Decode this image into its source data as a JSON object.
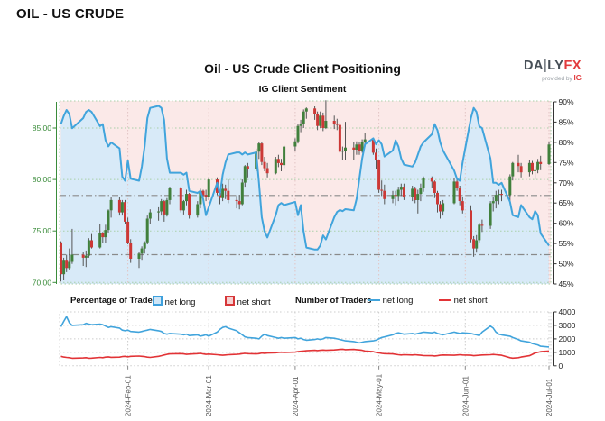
{
  "page": {
    "title": "OIL - US CRUDE"
  },
  "chart": {
    "title": "Oil - US Crude Client Positioning",
    "subtitle": "IG Client Sentiment",
    "logo": {
      "da": "DA",
      "bar": "|",
      "ly": "LY",
      "fx": "FX",
      "tagline": "provided by",
      "ig": "IG"
    },
    "legend": {
      "group1": "Percentage of Traders",
      "group1_long": "net long",
      "group1_short": "net short",
      "group2": "Number of Traders",
      "group2_long": "net long",
      "group2_short": "net short"
    },
    "colors": {
      "net_long_line": "#41a4dc",
      "net_long_fill": "#d8eaf8",
      "net_short_fill": "#fbe9e8",
      "candle_up": "#41803c",
      "candle_down": "#cc3836",
      "wick": "#555555",
      "price_axis_text": "#3a8c3a",
      "pct_axis_text": "#222222",
      "grid_h": "#a9cfa9",
      "grid_v": "#e2c4c4",
      "grid_gray": "#cccccc",
      "ref_line": "#8a8a8a",
      "count_long": "#41a4dc",
      "count_short": "#e23336",
      "date_text": "#555555"
    }
  },
  "chart_data": {
    "type": "candlestick",
    "title": "Oil - US Crude Client Positioning",
    "subtitle": "IG Client Sentiment",
    "start_date": "2024-01-08",
    "end_date": "2024-07-01",
    "span_days": 175,
    "price_axis": {
      "side": "left",
      "min": 70,
      "max": 85,
      "ticks": [
        85,
        80,
        75,
        70
      ],
      "tick_labels": [
        "85.00",
        "80.00",
        "75.00",
        "70.00"
      ]
    },
    "pct_axis": {
      "side": "right",
      "min": 45,
      "max": 90,
      "ticks": [
        90,
        85,
        80,
        75,
        70,
        65,
        60,
        55,
        50,
        45
      ],
      "tick_labels": [
        "90%",
        "85%",
        "80%",
        "75%",
        "70%",
        "65%",
        "60%",
        "55%",
        "50%",
        "45%"
      ]
    },
    "count_axis": {
      "side": "right",
      "min": 0,
      "max": 4000,
      "ticks": [
        4000,
        3000,
        2000,
        1000,
        0
      ],
      "tick_labels": [
        "4000",
        "3000",
        "2000",
        "1000",
        "0"
      ]
    },
    "reference_price_levels": [
      78.45,
      72.7
    ],
    "months": [
      {
        "date": "2024-02-01",
        "label": "2024-Feb-01"
      },
      {
        "date": "2024-03-01",
        "label": "2024-Mar-01"
      },
      {
        "date": "2024-04-01",
        "label": "2024-Apr-01"
      },
      {
        "date": "2024-05-01",
        "label": "2024-May-01"
      },
      {
        "date": "2024-06-01",
        "label": "2024-Jun-01"
      },
      {
        "date": "2024-07-01",
        "label": "2024-Jul-01"
      }
    ],
    "columns": [
      "date",
      "open",
      "high",
      "low",
      "close",
      "net_long_pct",
      "net_long_traders",
      "net_short_traders"
    ],
    "days": [
      [
        "2024-01-08",
        73.9,
        74.0,
        70.1,
        70.8,
        84.5,
        2900,
        700
      ],
      [
        "2024-01-09",
        70.8,
        72.4,
        70.2,
        72.2,
        86.5,
        3300,
        650
      ],
      [
        "2024-01-10",
        72.2,
        72.7,
        71.0,
        71.4,
        88.0,
        3650,
        620
      ],
      [
        "2024-01-11",
        71.4,
        73.3,
        71.2,
        72.0,
        87.0,
        3200,
        600
      ],
      [
        "2024-01-12",
        72.0,
        75.2,
        71.8,
        72.7,
        83.5,
        3000,
        560
      ],
      [
        "2024-01-16",
        72.7,
        73.0,
        71.6,
        72.4,
        86.0,
        3050,
        580
      ],
      [
        "2024-01-17",
        72.4,
        73.1,
        71.5,
        72.6,
        87.5,
        3150,
        600
      ],
      [
        "2024-01-18",
        72.6,
        74.3,
        72.4,
        74.1,
        88.0,
        3100,
        560
      ],
      [
        "2024-01-19",
        74.1,
        74.7,
        73.3,
        73.4,
        87.5,
        3050,
        570
      ],
      [
        "2024-01-22",
        73.4,
        75.7,
        73.3,
        74.8,
        84.0,
        3100,
        620
      ],
      [
        "2024-01-23",
        74.8,
        74.9,
        73.8,
        74.4,
        84.5,
        3050,
        600
      ],
      [
        "2024-01-24",
        74.4,
        75.6,
        73.8,
        75.1,
        80.5,
        2950,
        640
      ],
      [
        "2024-01-25",
        75.1,
        77.1,
        74.8,
        77.0,
        79.0,
        2850,
        660
      ],
      [
        "2024-01-26",
        77.0,
        78.3,
        76.3,
        78.0,
        80.0,
        2900,
        630
      ],
      [
        "2024-01-29",
        78.0,
        78.3,
        76.5,
        76.8,
        78.5,
        2800,
        640
      ],
      [
        "2024-01-30",
        76.8,
        78.0,
        76.5,
        77.8,
        71.5,
        2650,
        680
      ],
      [
        "2024-01-31",
        77.8,
        78.0,
        75.7,
        75.9,
        70.5,
        2600,
        700
      ],
      [
        "2024-02-01",
        75.9,
        76.3,
        73.7,
        73.8,
        75.5,
        2650,
        660
      ],
      [
        "2024-02-02",
        73.8,
        74.2,
        71.9,
        72.3,
        71.0,
        2550,
        700
      ],
      [
        "2024-02-05",
        72.3,
        73.0,
        71.4,
        72.8,
        70.5,
        2500,
        720
      ],
      [
        "2024-02-06",
        72.8,
        73.5,
        72.2,
        73.3,
        74.0,
        2550,
        700
      ],
      [
        "2024-02-07",
        73.3,
        74.0,
        72.8,
        73.9,
        79.0,
        2600,
        680
      ],
      [
        "2024-02-08",
        73.9,
        76.5,
        73.7,
        76.2,
        86.0,
        2650,
        640
      ],
      [
        "2024-02-09",
        76.2,
        77.1,
        75.7,
        76.8,
        88.5,
        2700,
        620
      ],
      [
        "2024-02-12",
        76.8,
        77.3,
        76.0,
        76.9,
        89.0,
        2600,
        700
      ],
      [
        "2024-02-13",
        76.9,
        78.1,
        76.5,
        77.9,
        88.5,
        2550,
        750
      ],
      [
        "2024-02-14",
        77.9,
        78.0,
        75.9,
        76.6,
        85.5,
        2400,
        800
      ],
      [
        "2024-02-15",
        76.6,
        78.2,
        76.4,
        78.0,
        76.0,
        2350,
        850
      ],
      [
        "2024-02-16",
        78.0,
        79.3,
        77.6,
        79.2,
        72.5,
        2400,
        880
      ],
      [
        "2024-02-20",
        79.2,
        79.3,
        76.8,
        77.0,
        72.5,
        2350,
        900
      ],
      [
        "2024-02-21",
        77.0,
        78.0,
        76.6,
        77.9,
        72.0,
        2300,
        880
      ],
      [
        "2024-02-22",
        77.9,
        79.0,
        77.5,
        78.6,
        72.5,
        2350,
        850
      ],
      [
        "2024-02-23",
        78.6,
        78.7,
        76.2,
        76.5,
        68.0,
        2250,
        870
      ],
      [
        "2024-02-26",
        76.5,
        77.9,
        76.3,
        77.6,
        67.5,
        2300,
        900
      ],
      [
        "2024-02-27",
        77.6,
        79.1,
        77.2,
        78.9,
        68.0,
        2200,
        920
      ],
      [
        "2024-02-28",
        78.9,
        79.0,
        77.8,
        78.5,
        66.0,
        2250,
        880
      ],
      [
        "2024-02-29",
        78.5,
        79.0,
        77.9,
        78.3,
        62.0,
        2300,
        850
      ],
      [
        "2024-03-01",
        78.3,
        80.2,
        78.0,
        80.0,
        64.0,
        2200,
        870
      ],
      [
        "2024-03-04",
        80.0,
        80.2,
        78.5,
        78.7,
        70.0,
        2500,
        820
      ],
      [
        "2024-03-05",
        78.7,
        79.0,
        77.6,
        78.2,
        67.0,
        2700,
        800
      ],
      [
        "2024-03-06",
        78.2,
        79.6,
        77.9,
        79.1,
        72.0,
        2850,
        780
      ],
      [
        "2024-03-07",
        79.1,
        79.5,
        78.1,
        78.9,
        75.0,
        2900,
        800
      ],
      [
        "2024-03-08",
        78.9,
        80.0,
        77.7,
        78.0,
        77.0,
        2800,
        820
      ],
      [
        "2024-03-11",
        78.0,
        78.4,
        77.2,
        77.9,
        77.5,
        2600,
        850
      ],
      [
        "2024-03-12",
        77.9,
        78.5,
        77.1,
        77.6,
        77.5,
        2450,
        870
      ],
      [
        "2024-03-13",
        77.6,
        80.0,
        77.5,
        79.7,
        77.0,
        2300,
        900
      ],
      [
        "2024-03-14",
        79.7,
        81.4,
        79.3,
        81.3,
        77.5,
        2150,
        920
      ],
      [
        "2024-03-15",
        81.3,
        81.6,
        80.2,
        81.0,
        77.0,
        2100,
        900
      ],
      [
        "2024-03-18",
        81.0,
        83.0,
        80.8,
        82.7,
        77.5,
        2050,
        880
      ],
      [
        "2024-03-19",
        82.7,
        83.6,
        82.0,
        83.5,
        70.0,
        2000,
        900
      ],
      [
        "2024-03-20",
        83.5,
        83.6,
        81.4,
        81.7,
        61.5,
        2200,
        950
      ],
      [
        "2024-03-21",
        81.7,
        82.2,
        80.8,
        81.1,
        58.0,
        2350,
        930
      ],
      [
        "2024-03-22",
        81.1,
        81.6,
        80.2,
        80.6,
        56.5,
        2250,
        950
      ],
      [
        "2024-03-25",
        80.6,
        82.2,
        80.5,
        82.0,
        62.0,
        2100,
        970
      ],
      [
        "2024-03-26",
        82.0,
        82.4,
        81.2,
        81.6,
        64.5,
        2050,
        990
      ],
      [
        "2024-03-27",
        81.6,
        82.0,
        80.8,
        81.4,
        65.0,
        2100,
        1010
      ],
      [
        "2024-03-28",
        81.4,
        83.3,
        81.1,
        83.2,
        64.5,
        2050,
        990
      ],
      [
        "2024-04-01",
        83.2,
        84.0,
        82.8,
        83.7,
        65.3,
        2100,
        1020
      ],
      [
        "2024-04-02",
        83.7,
        85.4,
        83.5,
        85.2,
        62.0,
        2000,
        1050
      ],
      [
        "2024-04-03",
        85.2,
        85.8,
        84.6,
        85.4,
        64.5,
        2050,
        1080
      ],
      [
        "2024-04-04",
        85.4,
        86.8,
        85.0,
        86.6,
        58.0,
        1950,
        1100
      ],
      [
        "2024-04-05",
        86.6,
        87.0,
        85.9,
        86.9,
        54.0,
        1900,
        1120
      ],
      [
        "2024-04-08",
        86.9,
        87.1,
        85.8,
        86.4,
        53.5,
        1950,
        1150
      ],
      [
        "2024-04-09",
        86.4,
        86.6,
        84.8,
        85.2,
        53.5,
        2000,
        1130
      ],
      [
        "2024-04-10",
        85.2,
        86.6,
        85.0,
        86.2,
        54.5,
        1950,
        1150
      ],
      [
        "2024-04-11",
        86.2,
        86.5,
        84.7,
        85.0,
        57.0,
        2000,
        1170
      ],
      [
        "2024-04-12",
        85.0,
        87.7,
        84.9,
        85.7,
        56.0,
        2100,
        1150
      ],
      [
        "2024-04-15",
        85.7,
        86.2,
        84.9,
        85.4,
        61.5,
        2050,
        1180
      ],
      [
        "2024-04-16",
        85.4,
        85.9,
        84.8,
        85.3,
        62.8,
        2000,
        1200
      ],
      [
        "2024-04-17",
        85.3,
        85.5,
        82.6,
        82.7,
        63.3,
        1950,
        1220
      ],
      [
        "2024-04-18",
        82.7,
        83.2,
        81.9,
        82.8,
        63.0,
        1900,
        1230
      ],
      [
        "2024-04-19",
        82.8,
        85.6,
        81.9,
        83.1,
        63.5,
        1850,
        1200
      ],
      [
        "2024-04-22",
        83.1,
        83.6,
        81.9,
        82.9,
        63.2,
        1800,
        1220
      ],
      [
        "2024-04-23",
        82.9,
        83.7,
        82.4,
        83.4,
        66.0,
        1750,
        1200
      ],
      [
        "2024-04-24",
        83.4,
        83.6,
        82.4,
        82.8,
        71.0,
        1700,
        1180
      ],
      [
        "2024-04-25",
        82.8,
        83.9,
        82.6,
        83.6,
        76.0,
        1750,
        1150
      ],
      [
        "2024-04-26",
        83.6,
        84.5,
        83.2,
        83.9,
        79.5,
        1800,
        1100
      ],
      [
        "2024-04-29",
        83.9,
        84.0,
        82.4,
        82.6,
        81.0,
        1850,
        1050
      ],
      [
        "2024-04-30",
        82.6,
        83.0,
        81.0,
        81.9,
        79.5,
        1900,
        1000
      ],
      [
        "2024-05-01",
        81.9,
        81.9,
        78.7,
        79.0,
        80.5,
        2000,
        960
      ],
      [
        "2024-05-02",
        79.0,
        79.9,
        78.4,
        78.9,
        79.5,
        2100,
        920
      ],
      [
        "2024-05-03",
        78.9,
        79.5,
        77.6,
        78.1,
        76.5,
        2150,
        900
      ],
      [
        "2024-05-06",
        78.1,
        78.9,
        77.7,
        78.5,
        78.0,
        2300,
        880
      ],
      [
        "2024-05-07",
        78.5,
        78.9,
        77.5,
        78.4,
        80.5,
        2400,
        850
      ],
      [
        "2024-05-08",
        78.4,
        79.3,
        77.9,
        79.0,
        79.0,
        2450,
        820
      ],
      [
        "2024-05-09",
        79.0,
        79.6,
        78.4,
        79.3,
        76.0,
        2400,
        800
      ],
      [
        "2024-05-10",
        79.3,
        79.6,
        78.0,
        78.3,
        74.5,
        2350,
        820
      ],
      [
        "2024-05-13",
        78.3,
        79.4,
        77.9,
        79.1,
        74.0,
        2400,
        800
      ],
      [
        "2024-05-14",
        79.1,
        79.3,
        77.7,
        78.0,
        75.0,
        2350,
        820
      ],
      [
        "2024-05-15",
        78.0,
        79.0,
        76.7,
        78.6,
        77.0,
        2400,
        800
      ],
      [
        "2024-05-16",
        78.6,
        79.6,
        77.9,
        79.2,
        79.0,
        2450,
        780
      ],
      [
        "2024-05-17",
        79.2,
        80.3,
        78.8,
        80.1,
        80.0,
        2500,
        760
      ],
      [
        "2024-05-20",
        80.1,
        80.3,
        79.2,
        79.8,
        82.0,
        2450,
        750
      ],
      [
        "2024-05-21",
        79.8,
        79.9,
        78.2,
        78.7,
        84.5,
        2500,
        730
      ],
      [
        "2024-05-22",
        78.7,
        78.9,
        76.8,
        77.6,
        83.0,
        2400,
        750
      ],
      [
        "2024-05-23",
        77.6,
        77.9,
        76.2,
        76.9,
        80.0,
        2350,
        780
      ],
      [
        "2024-05-24",
        76.9,
        78.0,
        76.5,
        77.7,
        78.0,
        2300,
        800
      ],
      [
        "2024-05-28",
        77.7,
        80.1,
        77.6,
        79.8,
        73.0,
        2500,
        780
      ],
      [
        "2024-05-29",
        79.8,
        80.0,
        78.9,
        79.2,
        71.0,
        2450,
        800
      ],
      [
        "2024-05-30",
        79.2,
        79.4,
        77.5,
        77.9,
        70.5,
        2400,
        820
      ],
      [
        "2024-05-31",
        77.9,
        78.3,
        76.7,
        77.0,
        75.0,
        2450,
        800
      ],
      [
        "2024-06-03",
        77.0,
        77.5,
        73.9,
        74.2,
        86.0,
        2400,
        780
      ],
      [
        "2024-06-04",
        74.2,
        74.5,
        72.5,
        73.3,
        88.5,
        2350,
        750
      ],
      [
        "2024-06-05",
        73.3,
        74.6,
        72.9,
        74.1,
        87.5,
        2300,
        770
      ],
      [
        "2024-06-06",
        74.1,
        75.8,
        73.9,
        75.6,
        84.0,
        2250,
        780
      ],
      [
        "2024-06-07",
        75.6,
        76.1,
        74.9,
        75.5,
        83.5,
        2500,
        800
      ],
      [
        "2024-06-10",
        75.5,
        77.9,
        75.2,
        77.7,
        76.0,
        2950,
        820
      ],
      [
        "2024-06-11",
        77.7,
        78.3,
        76.9,
        77.9,
        70.0,
        2800,
        840
      ],
      [
        "2024-06-12",
        77.9,
        78.9,
        77.2,
        78.5,
        70.0,
        2500,
        820
      ],
      [
        "2024-06-13",
        78.5,
        79.0,
        77.6,
        78.6,
        69.5,
        2350,
        800
      ],
      [
        "2024-06-14",
        78.6,
        79.0,
        77.9,
        78.5,
        70.0,
        2300,
        780
      ],
      [
        "2024-06-17",
        78.5,
        80.5,
        77.9,
        80.3,
        65.3,
        2200,
        600
      ],
      [
        "2024-06-18",
        80.3,
        81.7,
        79.9,
        81.6,
        62.0,
        2100,
        570
      ],
      [
        "2024-06-20",
        81.6,
        82.4,
        80.7,
        81.3,
        61.5,
        1950,
        600
      ],
      [
        "2024-06-21",
        81.3,
        81.6,
        80.2,
        80.7,
        64.5,
        1850,
        650
      ],
      [
        "2024-06-24",
        80.7,
        81.9,
        80.3,
        81.6,
        61.5,
        1750,
        750
      ],
      [
        "2024-06-25",
        81.6,
        81.8,
        80.5,
        80.8,
        61.0,
        1650,
        850
      ],
      [
        "2024-06-26",
        80.8,
        81.3,
        80.0,
        80.9,
        63.0,
        1600,
        950
      ],
      [
        "2024-06-27",
        80.9,
        82.0,
        80.6,
        81.7,
        62.0,
        1550,
        1000
      ],
      [
        "2024-06-28",
        81.7,
        82.3,
        80.9,
        81.5,
        57.5,
        1450,
        1050
      ],
      [
        "2024-07-01",
        81.5,
        83.6,
        81.4,
        83.4,
        54.5,
        1400,
        1100
      ]
    ]
  }
}
